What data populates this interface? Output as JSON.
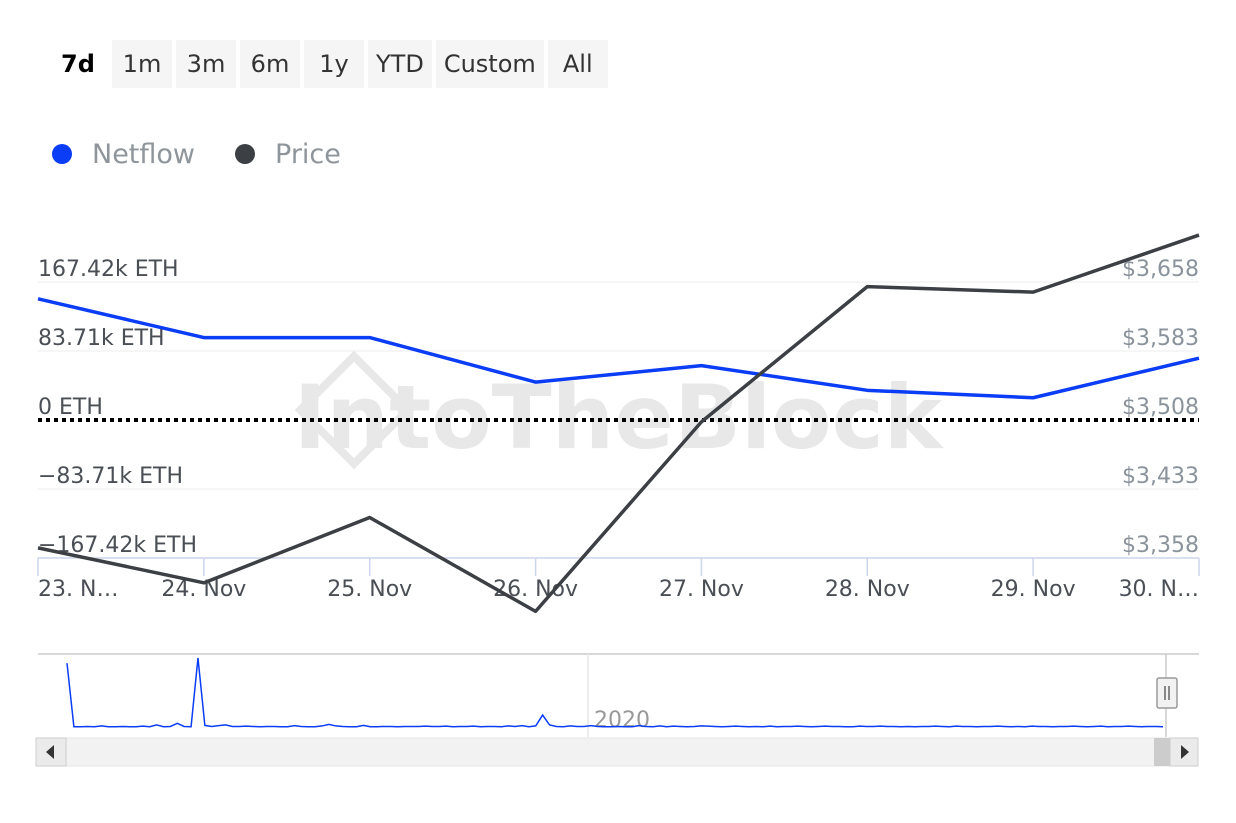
{
  "range_buttons": [
    {
      "label": "7d",
      "active": true
    },
    {
      "label": "1m",
      "active": false
    },
    {
      "label": "3m",
      "active": false
    },
    {
      "label": "6m",
      "active": false
    },
    {
      "label": "1y",
      "active": false
    },
    {
      "label": "YTD",
      "active": false
    },
    {
      "label": "Custom",
      "active": false
    },
    {
      "label": "All",
      "active": false
    }
  ],
  "legend": [
    {
      "label": "Netflow",
      "color": "#0a3df5"
    },
    {
      "label": "Price",
      "color": "#3c4045"
    }
  ],
  "watermark": "IntoTheBlock",
  "chart_data": {
    "type": "line",
    "categories": [
      "23. N…",
      "24. Nov",
      "25. Nov",
      "26. Nov",
      "27. Nov",
      "28. Nov",
      "29. Nov",
      "30. N…"
    ],
    "series": [
      {
        "name": "Netflow",
        "color": "#0a3df5",
        "axis": "left",
        "values": [
          147000,
          100000,
          100000,
          46000,
          66000,
          36000,
          27000,
          75000
        ]
      },
      {
        "name": "Price",
        "color": "#3c4045",
        "axis": "right",
        "values": [
          3369,
          3331,
          3402,
          3300,
          3506,
          3653,
          3647,
          3709
        ]
      }
    ],
    "y_left": {
      "ticks": [
        {
          "value": 167420,
          "label": "167.42k ETH"
        },
        {
          "value": 83710,
          "label": "83.71k ETH"
        },
        {
          "value": 0,
          "label": "0 ETH"
        },
        {
          "value": -83710,
          "label": "−83.71k ETH"
        },
        {
          "value": -167420,
          "label": "−167.42k ETH"
        }
      ],
      "range": [
        -167420,
        167420
      ]
    },
    "y_right": {
      "ticks": [
        {
          "value": 3658,
          "label": "$3,658"
        },
        {
          "value": 3583,
          "label": "$3,583"
        },
        {
          "value": 3508,
          "label": "$3,508"
        },
        {
          "value": 3433,
          "label": "$3,433"
        },
        {
          "value": 3358,
          "label": "$3,358"
        }
      ],
      "range": [
        3358,
        3658
      ]
    },
    "zero_line": "dotted",
    "grid": true,
    "navigator": {
      "label": "2020",
      "values": [
        250,
        5,
        5,
        6,
        5,
        8,
        5,
        5,
        6,
        5,
        5,
        7,
        5,
        12,
        5,
        6,
        18,
        6,
        5,
        270,
        10,
        6,
        9,
        12,
        6,
        6,
        7,
        6,
        5,
        6,
        6,
        5,
        5,
        9,
        6,
        5,
        5,
        8,
        14,
        8,
        6,
        5,
        5,
        10,
        5,
        5,
        6,
        6,
        5,
        6,
        6,
        6,
        7,
        6,
        6,
        7,
        5,
        6,
        6,
        7,
        5,
        6,
        6,
        5,
        8,
        6,
        9,
        5,
        8,
        50,
        12,
        6,
        5,
        8,
        6,
        6,
        9,
        6,
        5,
        5,
        6,
        5,
        5,
        9,
        6,
        5,
        8,
        5,
        7,
        6,
        5,
        6,
        8,
        7,
        6,
        5,
        6,
        7,
        6,
        5,
        6,
        5,
        7,
        5,
        6,
        6,
        7,
        6,
        5,
        6,
        7,
        6,
        6,
        5,
        5,
        7,
        6,
        6,
        7,
        6,
        6,
        5,
        6,
        5,
        6,
        6,
        7,
        6,
        5,
        7,
        6,
        6,
        5,
        6,
        6,
        7,
        6,
        5,
        6,
        5,
        7,
        6,
        6,
        5,
        6,
        6,
        7,
        6,
        5,
        6,
        7,
        5,
        6,
        6,
        7,
        6,
        5,
        6,
        6,
        5
      ]
    }
  }
}
